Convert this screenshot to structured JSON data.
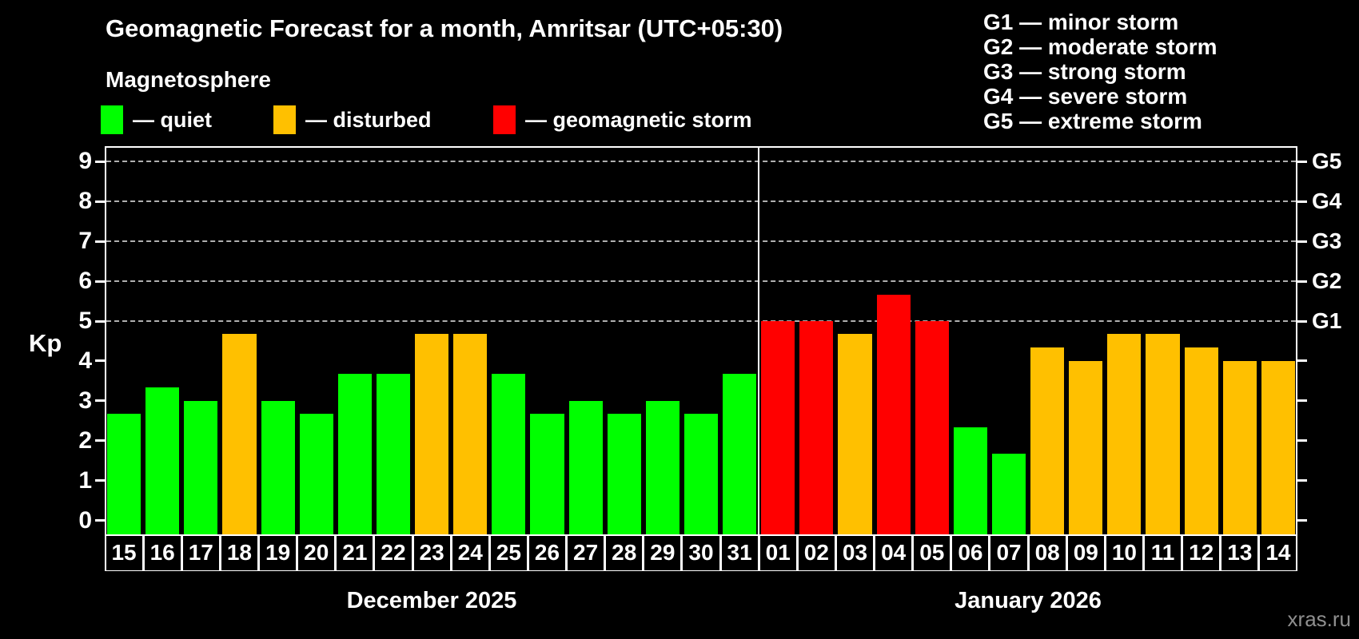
{
  "header": {
    "title": "Geomagnetic Forecast for a month, Amritsar (UTC+05:30)",
    "subtitle": "Magnetosphere"
  },
  "legend": {
    "items": [
      {
        "status": "quiet",
        "label": "— quiet",
        "color": "#00ff00"
      },
      {
        "status": "disturbed",
        "label": "— disturbed",
        "color": "#ffc000"
      },
      {
        "status": "storm",
        "label": "— geomagnetic storm",
        "color": "#ff0000"
      }
    ]
  },
  "g_legend": [
    "G1 — minor storm",
    "G2 — moderate storm",
    "G3 — strong storm",
    "G4 — severe storm",
    "G5 — extreme storm"
  ],
  "watermark": "xras.ru",
  "chart_data": {
    "type": "bar",
    "title": "Geomagnetic Forecast for a month, Amritsar (UTC+05:30)",
    "ylabel": "Kp",
    "ylim": [
      0,
      9.7
    ],
    "yticks": [
      0,
      1,
      2,
      3,
      4,
      5,
      6,
      7,
      8,
      9
    ],
    "grid": "dashed horizontal at Kp 5-9",
    "gridlines_at": [
      5,
      6,
      7,
      8,
      9
    ],
    "right_axis_labels": [
      {
        "label": "G1",
        "kp": 5
      },
      {
        "label": "G2",
        "kp": 6
      },
      {
        "label": "G3",
        "kp": 7
      },
      {
        "label": "G4",
        "kp": 8
      },
      {
        "label": "G5",
        "kp": 9
      }
    ],
    "colors": {
      "quiet": "#00ff00",
      "disturbed": "#ffc000",
      "storm": "#ff0000"
    },
    "months": [
      {
        "label": "December 2025",
        "days": [
          {
            "day": "15",
            "kp": 2.67,
            "status": "quiet"
          },
          {
            "day": "16",
            "kp": 3.33,
            "status": "quiet"
          },
          {
            "day": "17",
            "kp": 3.0,
            "status": "quiet"
          },
          {
            "day": "18",
            "kp": 4.67,
            "status": "disturbed"
          },
          {
            "day": "19",
            "kp": 3.0,
            "status": "quiet"
          },
          {
            "day": "20",
            "kp": 2.67,
            "status": "quiet"
          },
          {
            "day": "21",
            "kp": 3.67,
            "status": "quiet"
          },
          {
            "day": "22",
            "kp": 3.67,
            "status": "quiet"
          },
          {
            "day": "23",
            "kp": 4.67,
            "status": "disturbed"
          },
          {
            "day": "24",
            "kp": 4.67,
            "status": "disturbed"
          },
          {
            "day": "25",
            "kp": 3.67,
            "status": "quiet"
          },
          {
            "day": "26",
            "kp": 2.67,
            "status": "quiet"
          },
          {
            "day": "27",
            "kp": 3.0,
            "status": "quiet"
          },
          {
            "day": "28",
            "kp": 2.67,
            "status": "quiet"
          },
          {
            "day": "29",
            "kp": 3.0,
            "status": "quiet"
          },
          {
            "day": "30",
            "kp": 2.67,
            "status": "quiet"
          },
          {
            "day": "31",
            "kp": 3.67,
            "status": "quiet"
          }
        ]
      },
      {
        "label": "January 2026",
        "days": [
          {
            "day": "01",
            "kp": 5.0,
            "status": "storm"
          },
          {
            "day": "02",
            "kp": 5.0,
            "status": "storm"
          },
          {
            "day": "03",
            "kp": 4.67,
            "status": "disturbed"
          },
          {
            "day": "04",
            "kp": 5.67,
            "status": "storm"
          },
          {
            "day": "05",
            "kp": 5.0,
            "status": "storm"
          },
          {
            "day": "06",
            "kp": 2.33,
            "status": "quiet"
          },
          {
            "day": "07",
            "kp": 1.67,
            "status": "quiet"
          },
          {
            "day": "08",
            "kp": 4.33,
            "status": "disturbed"
          },
          {
            "day": "09",
            "kp": 4.0,
            "status": "disturbed"
          },
          {
            "day": "10",
            "kp": 4.67,
            "status": "disturbed"
          },
          {
            "day": "11",
            "kp": 4.67,
            "status": "disturbed"
          },
          {
            "day": "12",
            "kp": 4.33,
            "status": "disturbed"
          },
          {
            "day": "13",
            "kp": 4.0,
            "status": "disturbed"
          },
          {
            "day": "14",
            "kp": 4.0,
            "status": "disturbed"
          }
        ]
      }
    ]
  }
}
